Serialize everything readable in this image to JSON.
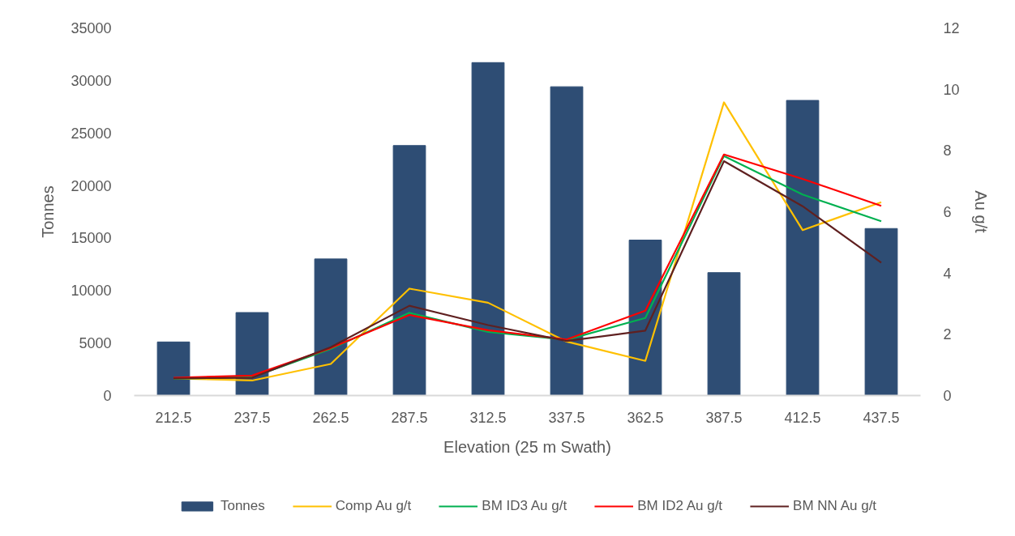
{
  "chart_data": {
    "type": "bar",
    "xlabel": "Elevation (25 m Swath)",
    "ylabel": "Tonnes",
    "y2label": "Au g/t",
    "categories": [
      "212.5",
      "237.5",
      "262.5",
      "287.5",
      "312.5",
      "337.5",
      "362.5",
      "387.5",
      "412.5",
      "437.5"
    ],
    "series": [
      {
        "name": "Tonnes",
        "color": "#2e4d74",
        "values": [
          5100,
          7900,
          13000,
          23800,
          31700,
          29400,
          14800,
          11700,
          28100,
          15900
        ]
      },
      {
        "name": "Comp Au g/t",
        "type": "line",
        "axis": "y2",
        "color": "#ffc000",
        "values": [
          0.56,
          0.49,
          1.03,
          3.49,
          3.03,
          1.76,
          1.13,
          9.57,
          5.4,
          6.31
        ]
      },
      {
        "name": "BM ID3 Au g/t",
        "type": "line",
        "axis": "y2",
        "color": "#00b050",
        "values": [
          0.55,
          0.6,
          1.52,
          2.7,
          2.08,
          1.82,
          2.53,
          7.82,
          6.56,
          5.69
        ]
      },
      {
        "name": "BM ID2 Au g/t",
        "type": "line",
        "axis": "y2",
        "color": "#ff0000",
        "values": [
          0.58,
          0.65,
          1.55,
          2.63,
          2.13,
          1.83,
          2.77,
          7.87,
          7.07,
          6.19
        ]
      },
      {
        "name": "BM NN Au g/t",
        "type": "line",
        "axis": "y2",
        "color": "#5f2020",
        "values": [
          0.56,
          0.58,
          1.58,
          2.93,
          2.3,
          1.78,
          2.12,
          7.65,
          6.18,
          4.34
        ]
      }
    ],
    "ylim": [
      0,
      35000
    ],
    "yticks": [
      0,
      5000,
      10000,
      15000,
      20000,
      25000,
      30000,
      35000
    ],
    "y2lim": [
      0,
      12
    ],
    "y2ticks": [
      0,
      2,
      4,
      6,
      8,
      10,
      12
    ],
    "legend": "bottom",
    "grid": false
  }
}
